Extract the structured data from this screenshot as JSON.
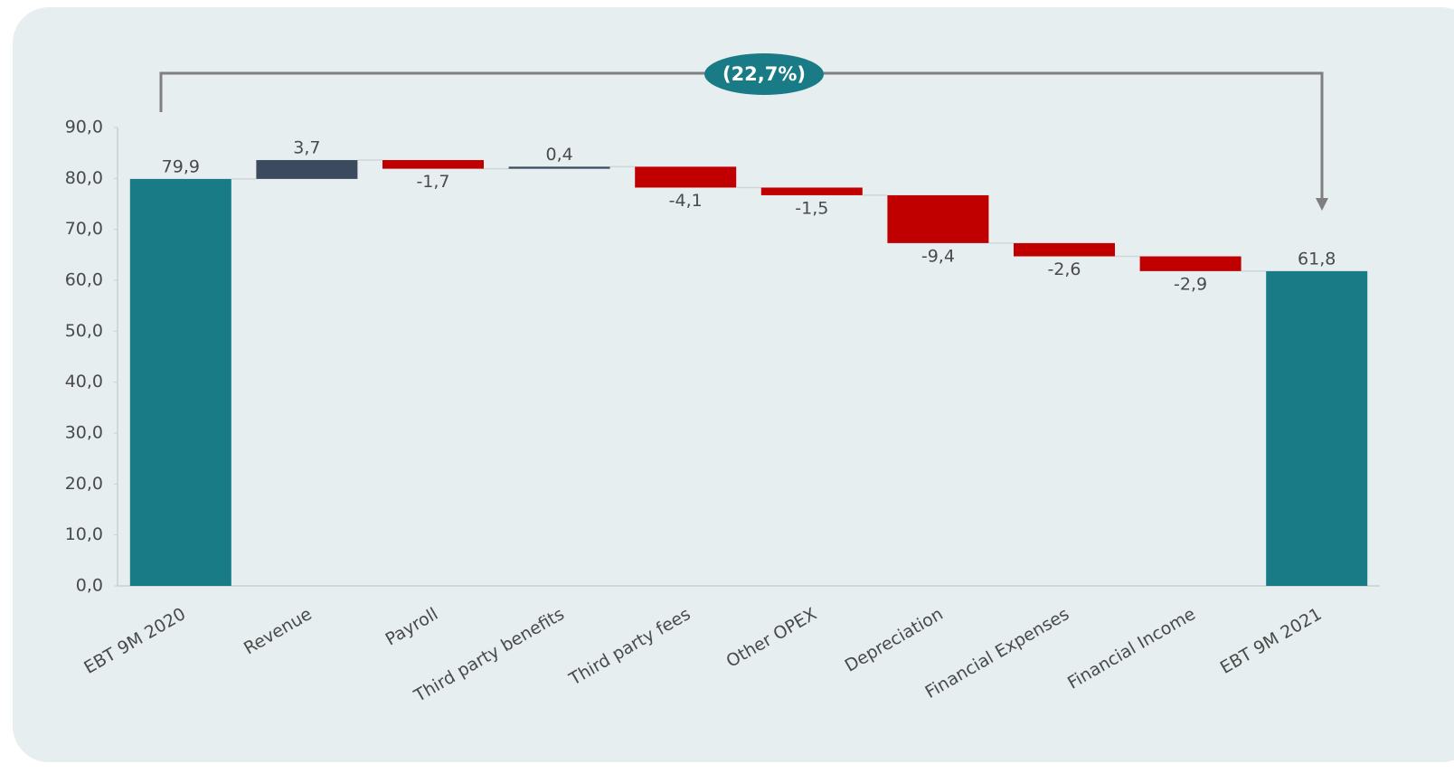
{
  "chart_data": {
    "type": "waterfall",
    "annotation": "(22,7%)",
    "categories": [
      "EBT 9M 2020",
      "Revenue",
      "Payroll",
      "Third party benefits",
      "Third party fees",
      "Other OPEX",
      "Depreciation",
      "Financial Expenses",
      "Financial Income",
      "EBT 9M 2021"
    ],
    "values": [
      79.9,
      3.7,
      -1.7,
      0.4,
      -4.1,
      -1.5,
      -9.4,
      -2.6,
      -2.9,
      61.8
    ],
    "value_labels": [
      "79,9",
      "3,7",
      "-1,7",
      "0,4",
      "-4,1",
      "-1,5",
      "-9,4",
      "-2,6",
      "-2,9",
      "61,8"
    ],
    "total_indices": [
      0,
      9
    ],
    "total_color": "#187b85",
    "increase_color": "#3b4a5e",
    "decrease_color": "#c00000",
    "ylim": [
      0,
      90
    ],
    "yticks": [
      {
        "value": 0,
        "label": "0,0"
      },
      {
        "value": 10,
        "label": "10,0"
      },
      {
        "value": 20,
        "label": "20,0"
      },
      {
        "value": 30,
        "label": "30,0"
      },
      {
        "value": 40,
        "label": "40,0"
      },
      {
        "value": 50,
        "label": "50,0"
      },
      {
        "value": 60,
        "label": "60,0"
      },
      {
        "value": 70,
        "label": "70,0"
      },
      {
        "value": 80,
        "label": "80,0"
      },
      {
        "value": 90,
        "label": "90,0"
      }
    ]
  }
}
